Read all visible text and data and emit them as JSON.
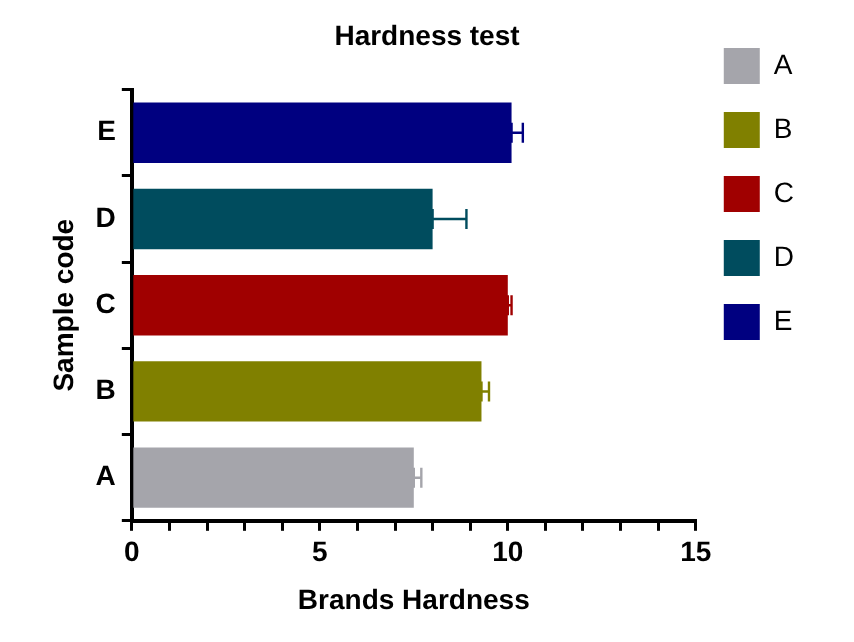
{
  "chart_data": {
    "type": "bar",
    "orientation": "horizontal",
    "title": "Hardness test",
    "xlabel": "Brands Hardness",
    "ylabel": "Sample code",
    "categories": [
      "E",
      "D",
      "C",
      "B",
      "A"
    ],
    "series": [
      {
        "name": "A",
        "color": "#a5a5ab",
        "values": [
          null,
          null,
          null,
          null,
          7.5
        ],
        "errors": [
          null,
          null,
          null,
          null,
          [
            7.5,
            7.7
          ]
        ]
      },
      {
        "name": "B",
        "color": "#808000",
        "values": [
          null,
          null,
          null,
          9.3,
          null
        ],
        "errors": [
          null,
          null,
          null,
          [
            9.3,
            9.5
          ],
          null
        ]
      },
      {
        "name": "C",
        "color": "#a00000",
        "values": [
          null,
          null,
          10.0,
          null,
          null
        ],
        "errors": [
          null,
          null,
          [
            10.0,
            10.1
          ],
          null,
          null
        ]
      },
      {
        "name": "D",
        "color": "#004c5e",
        "values": [
          null,
          8.0,
          null,
          null,
          null
        ],
        "errors": [
          null,
          [
            8.0,
            8.9
          ],
          null,
          null,
          null
        ]
      },
      {
        "name": "E",
        "color": "#000080",
        "values": [
          10.1,
          null,
          null,
          null,
          null
        ],
        "errors": [
          [
            10.1,
            10.4
          ],
          null,
          null,
          null,
          null
        ]
      }
    ],
    "xlim": [
      0,
      15
    ],
    "xticks": [
      0,
      {
        "value": 1,
        "label": null
      },
      {
        "value": 2,
        "label": null
      },
      {
        "value": 3,
        "label": null
      },
      {
        "value": 4,
        "label": null
      },
      5,
      {
        "value": 6,
        "label": null
      },
      {
        "value": 7,
        "label": null
      },
      {
        "value": 8,
        "label": null
      },
      {
        "value": 9,
        "label": null
      },
      10,
      {
        "value": 11,
        "label": null
      },
      {
        "value": 12,
        "label": null
      },
      {
        "value": 13,
        "label": null
      },
      {
        "value": 14,
        "label": null
      },
      15
    ],
    "grid": false,
    "legend": "right"
  }
}
